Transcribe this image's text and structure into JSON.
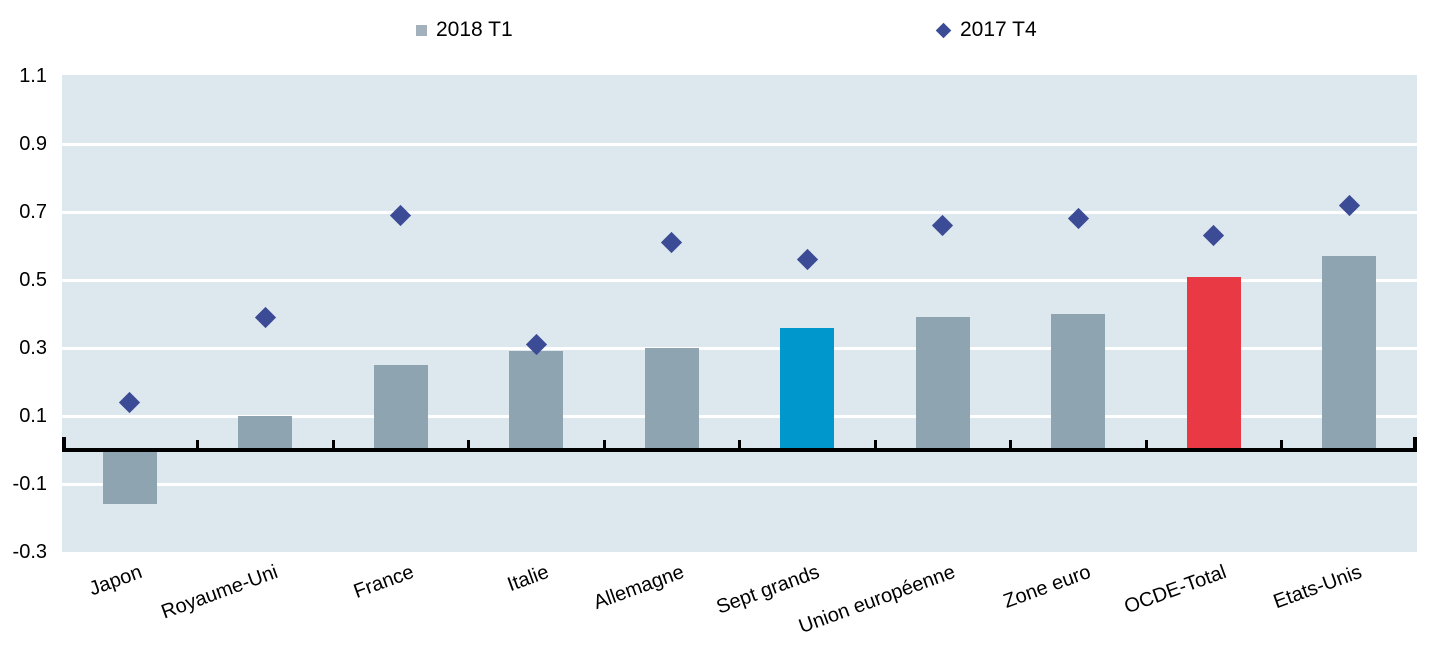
{
  "figure": {
    "background": "#FFFFFF",
    "plot_background": "#DCE7EE",
    "gridline_color": "#FFFFFF",
    "axis_color": "#000000",
    "text_color": "#000000"
  },
  "legend": {
    "items": [
      {
        "label": "2018 T1",
        "marker": "square",
        "color": "#A3B1BD"
      },
      {
        "label": "2017 T4",
        "marker": "diamond",
        "color": "#3C4B96"
      }
    ]
  },
  "chart_data": {
    "type": "bar",
    "title": "",
    "xlabel": "",
    "ylabel": "",
    "categories": [
      "Japon",
      "Royaume-Uni",
      "France",
      "Italie",
      "Allemagne",
      "Sept grands",
      "Union européenne",
      "Zone euro",
      "OCDE-Total",
      "Etats-Unis"
    ],
    "series": [
      {
        "name": "2018 T1",
        "type": "bar",
        "values": [
          -0.16,
          0.1,
          0.25,
          0.29,
          0.3,
          0.36,
          0.39,
          0.4,
          0.51,
          0.57
        ],
        "default_color": "#8FA4B1",
        "highlight_colors": {
          "Sept grands": "#0098CC",
          "OCDE-Total": "#E83944"
        }
      },
      {
        "name": "2017 T4",
        "type": "scatter",
        "marker": "diamond",
        "values": [
          0.14,
          0.39,
          0.69,
          0.31,
          0.61,
          0.56,
          0.66,
          0.68,
          0.63,
          0.72
        ],
        "color": "#3C4B96"
      }
    ],
    "ylim": [
      -0.3,
      1.1
    ],
    "yticks": [
      1.1,
      0.9,
      0.7,
      0.5,
      0.3,
      0.1,
      -0.1,
      -0.3
    ],
    "gridlines": [
      0.9,
      0.7,
      0.5,
      0.3,
      0.1,
      -0.1
    ],
    "grid": "horizontal",
    "legend_position": "top"
  }
}
